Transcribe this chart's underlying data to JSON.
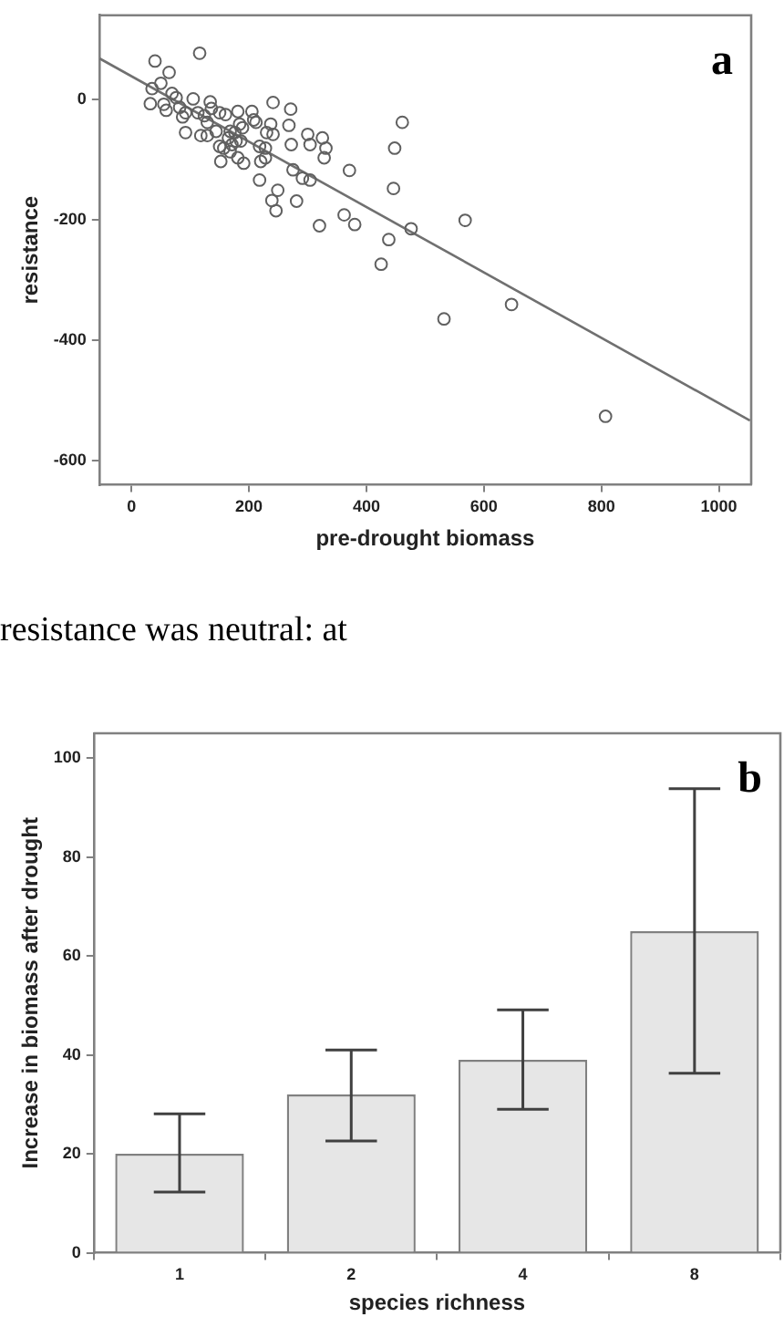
{
  "chart_data": [
    {
      "type": "scatter",
      "xlabel": "pre-drought biomass",
      "ylabel": "resistance",
      "annotations": [
        "a",
        "resistance was neutral: at"
      ],
      "xlim": [
        -55,
        1055
      ],
      "ylim": [
        -641,
        140
      ],
      "xticks": [
        0,
        200,
        400,
        600,
        800,
        1000
      ],
      "yticks": [
        0,
        -200,
        -400,
        -600
      ],
      "grid": false,
      "legend": false,
      "series": [
        {
          "type": "scatter",
          "marker": "circle",
          "color": "#606060",
          "x": [
            40,
            116,
            64,
            50,
            35,
            69,
            32,
            55,
            59,
            82,
            87,
            92,
            105,
            113,
            124,
            134,
            118,
            129,
            150,
            160,
            181,
            205,
            212,
            184,
            176,
            165,
            157,
            152,
            168,
            181,
            191,
            150,
            144,
            171,
            186,
            218,
            228,
            220,
            228,
            218,
            241,
            230,
            241,
            271,
            268,
            272,
            300,
            304,
            325,
            331,
            328,
            275,
            291,
            304,
            249,
            239,
            246,
            281,
            320,
            362,
            371,
            380,
            425,
            438,
            448,
            446,
            461,
            476,
            532,
            568,
            647,
            807,
            92,
            76,
            136,
            129,
            168,
            178,
            189,
            208,
            237
          ],
          "values": [
            64,
            77,
            45,
            27,
            18,
            10,
            -7,
            -8,
            -18,
            -13,
            -29,
            -55,
            1,
            -22,
            -27,
            -4,
            -60,
            -60,
            -22,
            -25,
            -20,
            -20,
            -38,
            -41,
            -55,
            -64,
            -81,
            -103,
            -87,
            -97,
            -106,
            -78,
            -53,
            -75,
            -69,
            -78,
            -81,
            -103,
            -97,
            -134,
            -5,
            -55,
            -58,
            -16,
            -43,
            -75,
            -58,
            -75,
            -64,
            -81,
            -97,
            -117,
            -131,
            -134,
            -151,
            -168,
            -185,
            -169,
            -210,
            -192,
            -118,
            -208,
            -274,
            -233,
            -81,
            -148,
            -38,
            -215,
            -365,
            -201,
            -341,
            -527,
            -22,
            3,
            -15,
            -38,
            -53,
            -69,
            -47,
            -34,
            -41
          ]
        },
        {
          "type": "line",
          "color": "#707070",
          "x": [
            -54,
            1053
          ],
          "values": [
            68,
            -534
          ]
        }
      ]
    },
    {
      "type": "bar",
      "xlabel": "species richness",
      "ylabel": "Increase in biomass after drought",
      "annotations": [
        "b"
      ],
      "categories": [
        "1",
        "2",
        "4",
        "8"
      ],
      "values": [
        20,
        32,
        39,
        65
      ],
      "color": "#e6e6e6",
      "errors": [
        [
          12.3,
          28.1
        ],
        [
          22.6,
          41
        ],
        [
          29,
          49.1
        ],
        [
          36.3,
          93.8
        ]
      ],
      "ylim": [
        0,
        105
      ],
      "yticks": [
        0,
        20,
        40,
        60,
        80,
        100
      ],
      "grid": false,
      "legend": false
    }
  ]
}
